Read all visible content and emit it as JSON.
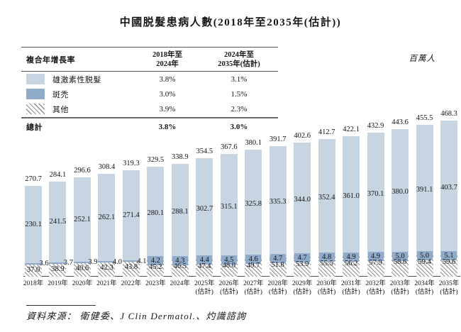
{
  "title": "中國脱髮患病人數(2018年至2035年(估計))",
  "unit_label": "百萬人",
  "cagr_table": {
    "title": "複合年增長率",
    "col1_line1": "2018年至",
    "col1_line2": "2024年",
    "col2_line1": "2024年至",
    "col2_line2": "2035年(估計)",
    "rows": [
      {
        "swatch": "light",
        "label": "雄激素性脱髮",
        "v1": "3.8%",
        "v2": "3.1%"
      },
      {
        "swatch": "dark",
        "label": "斑禿",
        "v1": "3.0%",
        "v2": "1.5%"
      },
      {
        "swatch": "hatch",
        "label": "其他",
        "v1": "3.9%",
        "v2": "2.3%"
      }
    ],
    "total": {
      "label": "總計",
      "v1": "3.8%",
      "v2": "3.0%"
    }
  },
  "chart_data": {
    "type": "bar",
    "stacked": true,
    "title": "中國脱髮患病人數(2018年至2035年(估計))",
    "ylabel": "百萬人",
    "legend_position": "top-left-table",
    "grid": false,
    "categories": [
      "2018年",
      "2019年",
      "2020年",
      "2021年",
      "2022年",
      "2023年",
      "2024年",
      "2025年",
      "2026年",
      "2027年",
      "2028年",
      "2029年",
      "2030年",
      "2031年",
      "2032年",
      "2033年",
      "2034年",
      "2035年"
    ],
    "estimate_suffix": "(估計)",
    "estimate_from_index": 7,
    "series": [
      {
        "name": "雄激素性脱髮",
        "values": [
          230.1,
          241.5,
          252.1,
          262.1,
          271.4,
          280.1,
          288.1,
          302.7,
          315.1,
          325.8,
          335.3,
          344.0,
          352.4,
          361.0,
          370.1,
          380.0,
          391.1,
          403.7
        ]
      },
      {
        "name": "斑禿",
        "values": [
          3.6,
          3.7,
          3.9,
          4.0,
          4.1,
          4.2,
          4.3,
          4.4,
          4.5,
          4.6,
          4.7,
          4.7,
          4.8,
          4.9,
          4.9,
          5.0,
          5.0,
          5.1
        ]
      },
      {
        "name": "其他",
        "values": [
          37.0,
          38.9,
          40.6,
          42.3,
          43.8,
          45.2,
          46.5,
          47.4,
          48.0,
          49.7,
          51.8,
          53.9,
          55.5,
          56.2,
          57.9,
          58.6,
          59.4,
          59.6
        ]
      }
    ],
    "totals": [
      270.7,
      284.1,
      296.6,
      308.4,
      319.3,
      329.5,
      338.9,
      354.5,
      367.6,
      380.1,
      391.7,
      402.6,
      412.7,
      422.1,
      432.9,
      443.6,
      455.5,
      468.3
    ]
  },
  "colors": {
    "androgenetic": "#c7d4e2",
    "areata": "#90aac9",
    "hatch_line": "#8f8f8f",
    "axis": "#4d4d4d"
  },
  "source": "資料來源： 衛健委、J Clin Dermatol.、灼識諮詢"
}
